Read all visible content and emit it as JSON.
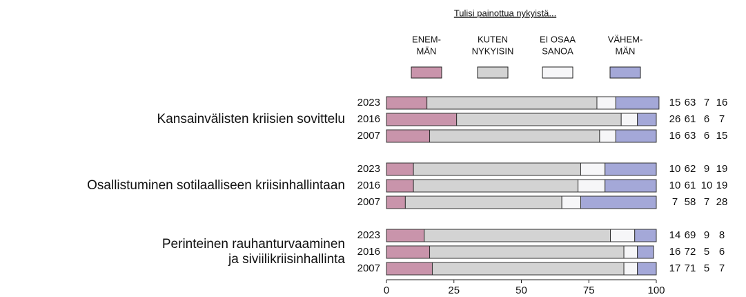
{
  "chart_data": {
    "type": "stacked-bar-horizontal",
    "legend_title": "Tulisi painottua nykyistä...",
    "group_labels": [
      [
        "Kansainvälisten kriisien sovittelu"
      ],
      [
        "Osallistuminen sotilaalliseen kriisinhallintaan"
      ],
      [
        "Perinteinen rauhanturvaaminen",
        "ja siviilikriisinhallinta"
      ]
    ],
    "categories": [
      "2023",
      "2016",
      "2007",
      "2023",
      "2016",
      "2007",
      "2023",
      "2016",
      "2007"
    ],
    "series": [
      {
        "name": [
          "ENEM-",
          "MÄN"
        ],
        "color": "#c994ab",
        "values": [
          15,
          26,
          16,
          10,
          10,
          7,
          14,
          16,
          17
        ]
      },
      {
        "name": [
          "KUTEN",
          "NYKYISIN"
        ],
        "color": "#d3d3d3",
        "values": [
          63,
          61,
          63,
          62,
          61,
          58,
          69,
          72,
          71
        ]
      },
      {
        "name": [
          "EI OSAA",
          "SANOA"
        ],
        "color": "#f6f6f8",
        "values": [
          7,
          6,
          6,
          9,
          10,
          7,
          9,
          5,
          5
        ]
      },
      {
        "name": [
          "VÄHEM-",
          "MÄN"
        ],
        "color": "#a4a8d8",
        "values": [
          16,
          7,
          15,
          19,
          19,
          28,
          8,
          6,
          7
        ]
      }
    ],
    "xlim": [
      0,
      100
    ],
    "xticks": [
      0,
      25,
      50,
      75,
      100
    ]
  }
}
